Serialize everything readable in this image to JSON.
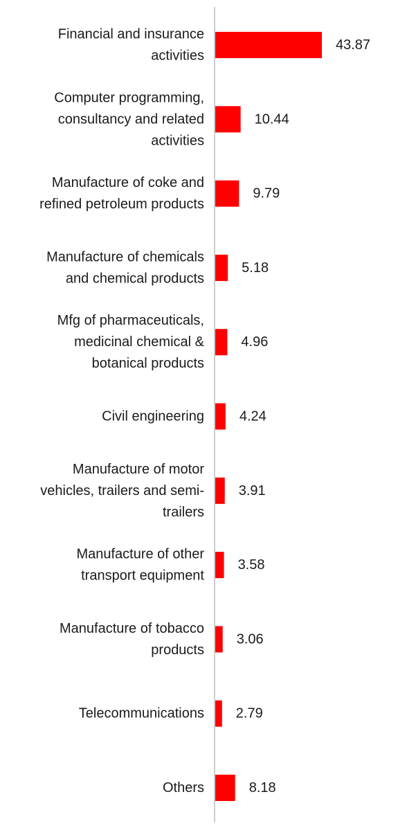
{
  "chart_data": {
    "type": "bar",
    "orientation": "horizontal",
    "bar_color": "#ff0000",
    "axis_color": "#cccccc",
    "categories": [
      [
        "Financial and insurance",
        "activities"
      ],
      [
        "Computer programming,",
        "consultancy and related",
        "activities"
      ],
      [
        "Manufacture of coke and",
        "refined petroleum products"
      ],
      [
        "Manufacture of chemicals",
        "and chemical products"
      ],
      [
        "Mfg of pharmaceuticals,",
        "medicinal chemical &",
        "botanical products"
      ],
      [
        "Civil engineering"
      ],
      [
        "Manufacture of motor",
        "vehicles, trailers and semi-",
        "trailers"
      ],
      [
        "Manufacture of other",
        "transport equipment"
      ],
      [
        "Manufacture of tobacco",
        "products"
      ],
      [
        "Telecommunications"
      ],
      [
        "Others"
      ]
    ],
    "values": [
      43.87,
      10.44,
      9.79,
      5.18,
      4.96,
      4.24,
      3.91,
      3.58,
      3.06,
      2.79,
      8.18
    ],
    "value_labels": [
      "43.87",
      "10.44",
      "9.79",
      "5.18",
      "4.96",
      "4.24",
      "3.91",
      "3.58",
      "3.06",
      "2.79",
      "8.18"
    ],
    "title": "",
    "xlabel": "",
    "ylabel": "",
    "grid": false,
    "legend": "none"
  }
}
